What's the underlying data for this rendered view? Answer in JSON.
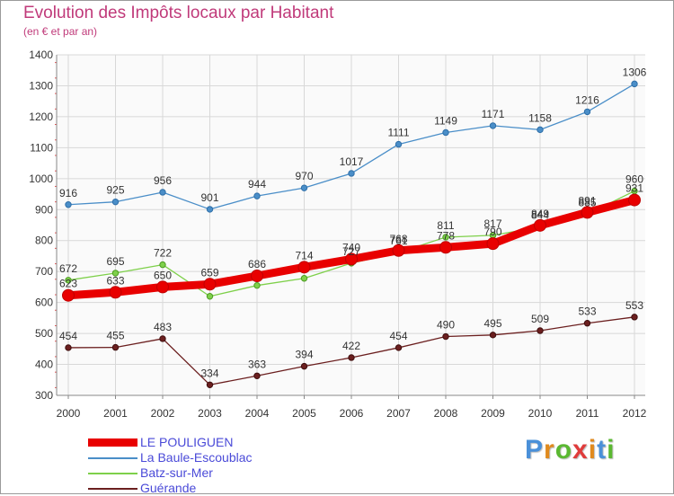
{
  "header": {
    "title": "Evolution des Impôts locaux par Habitant",
    "subtitle": "(en € et par an)"
  },
  "brand": {
    "logo_text": "Proxiti",
    "letter_colors": [
      "#4a90d9",
      "#e08a1e",
      "#5bb832",
      "#e03b3b",
      "#e08a1e",
      "#4a90d9",
      "#5bb832"
    ]
  },
  "chart_data": {
    "type": "line",
    "x": [
      "2000",
      "2001",
      "2002",
      "2003",
      "2004",
      "2005",
      "2006",
      "2007",
      "2008",
      "2009",
      "2010",
      "2011",
      "2012"
    ],
    "ylim": [
      300,
      1400
    ],
    "yticks": [
      300,
      400,
      500,
      600,
      700,
      800,
      900,
      1000,
      1100,
      1200,
      1300,
      1400
    ],
    "xlabel": "",
    "ylabel": "",
    "grid": true,
    "legend_position": "bottom-left",
    "series": [
      {
        "name": "LE POULIGUEN",
        "values": [
          623,
          633,
          650,
          659,
          686,
          714,
          740,
          768,
          778,
          790,
          849,
          891,
          931
        ],
        "color": "#e80000",
        "labels": [
          "623",
          "633",
          "650",
          "659",
          "686",
          "714",
          "740",
          "768",
          "778",
          "790",
          "849",
          "891",
          "931"
        ]
      },
      {
        "name": "La Baule-Escoublac",
        "values": [
          916,
          925,
          956,
          901,
          944,
          970,
          1017,
          1111,
          1149,
          1171,
          1158,
          1216,
          1306
        ],
        "color": "#4a8ec8",
        "labels": [
          "916",
          "925",
          "956",
          "901",
          "944",
          "970",
          "1017",
          "1111",
          "1149",
          "1171",
          "1158",
          "1216",
          "1306"
        ]
      },
      {
        "name": "Batz-sur-Mer",
        "values": [
          672,
          695,
          722,
          620,
          655,
          678,
          727,
          761,
          811,
          817,
          844,
          885,
          960
        ],
        "color": "#7ed04a",
        "labels": [
          "672",
          "695",
          "722",
          "",
          "",
          "",
          "727",
          "761",
          "811",
          "817",
          "844",
          "885",
          "960"
        ]
      },
      {
        "name": "Guérande",
        "values": [
          454,
          455,
          483,
          334,
          363,
          394,
          422,
          454,
          490,
          495,
          509,
          533,
          553
        ],
        "color": "#6b1f1f",
        "labels": [
          "454",
          "455",
          "483",
          "334",
          "363",
          "394",
          "422",
          "454",
          "490",
          "495",
          "509",
          "533",
          "553"
        ]
      }
    ]
  }
}
